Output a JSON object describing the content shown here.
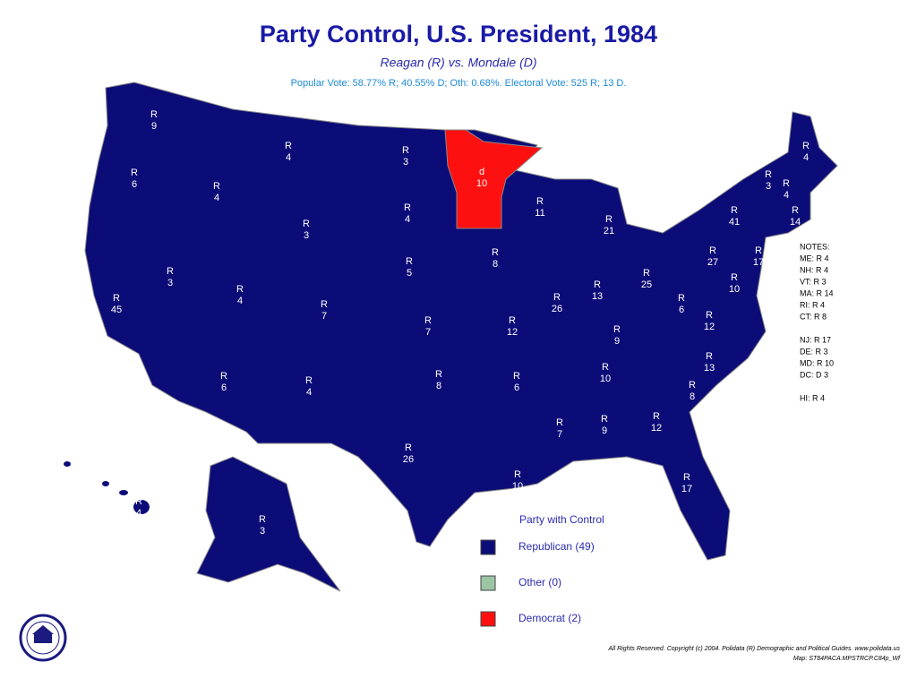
{
  "header": {
    "title": "Party Control, U.S. President, 1984",
    "subtitle": "Reagan (R) vs. Mondale (D)",
    "results": "Popular Vote: 58.77% R; 40.55% D; Oth: 0.68%. Electoral Vote: 525 R; 13 D."
  },
  "states": [
    {
      "party": "R",
      "votes": 9
    },
    {
      "party": "R",
      "votes": 6
    },
    {
      "party": "R",
      "votes": 45
    },
    {
      "party": "R",
      "votes": 3
    },
    {
      "party": "R",
      "votes": 4
    },
    {
      "party": "R",
      "votes": 4
    },
    {
      "party": "R",
      "votes": 3
    },
    {
      "party": "R",
      "votes": 4
    },
    {
      "party": "R",
      "votes": 7
    },
    {
      "party": "R",
      "votes": 6
    },
    {
      "party": "R",
      "votes": 4
    },
    {
      "party": "R",
      "votes": 3
    },
    {
      "party": "R",
      "votes": 4
    },
    {
      "party": "R",
      "votes": 5
    },
    {
      "party": "R",
      "votes": 7
    },
    {
      "party": "R",
      "votes": 8
    },
    {
      "party": "R",
      "votes": 26
    },
    {
      "party": "d",
      "votes": 10
    },
    {
      "party": "R",
      "votes": 8
    },
    {
      "party": "R",
      "votes": 12
    },
    {
      "party": "R",
      "votes": 6
    },
    {
      "party": "R",
      "votes": 10
    },
    {
      "party": "R",
      "votes": 11
    },
    {
      "party": "R",
      "votes": 26
    },
    {
      "party": "R",
      "votes": 21
    },
    {
      "party": "R",
      "votes": 13
    },
    {
      "party": "R",
      "votes": 25
    },
    {
      "party": "R",
      "votes": 9
    },
    {
      "party": "R",
      "votes": 10
    },
    {
      "party": "R",
      "votes": 7
    },
    {
      "party": "R",
      "votes": 9
    },
    {
      "party": "R",
      "votes": 12
    },
    {
      "party": "R",
      "votes": 17
    },
    {
      "party": "R",
      "votes": 8
    },
    {
      "party": "R",
      "votes": 13
    },
    {
      "party": "R",
      "votes": 12
    },
    {
      "party": "R",
      "votes": 6
    },
    {
      "party": "R",
      "votes": 27
    },
    {
      "party": "R",
      "votes": 41
    },
    {
      "party": "R",
      "votes": 4
    },
    {
      "party": "R",
      "votes": 3
    },
    {
      "party": "R",
      "votes": 4
    },
    {
      "party": "R",
      "votes": 14
    },
    {
      "party": "R",
      "votes": 17
    },
    {
      "party": "R",
      "votes": 10
    },
    {
      "party": "R",
      "votes": 3
    },
    {
      "party": "R",
      "votes": 4
    }
  ],
  "notes": {
    "title": "NOTES:",
    "items": [
      "ME: R 4",
      "NH: R 4",
      "VT: R 3",
      "MA: R 14",
      "RI: R 4",
      "CT: R 8",
      "NJ: R 17",
      "DE: R 3",
      "MD: R 10",
      "DC: D 3",
      "HI: R 4"
    ]
  },
  "legend": {
    "title": "Party with Control",
    "items": [
      {
        "label": "Republican (49)",
        "color": "#0c0c78"
      },
      {
        "label": "Other (0)",
        "color": "#9cc4a4"
      },
      {
        "label": "Democrat (2)",
        "color": "#ff1010"
      }
    ]
  },
  "footer": [
    "All Rights Reserved. Copyright (c) 2004. Polidata (R) Demographic and Political Guides. www.polidata.us",
    "Map: ST84PACA.MPSTRCP.C84p_Wf"
  ]
}
